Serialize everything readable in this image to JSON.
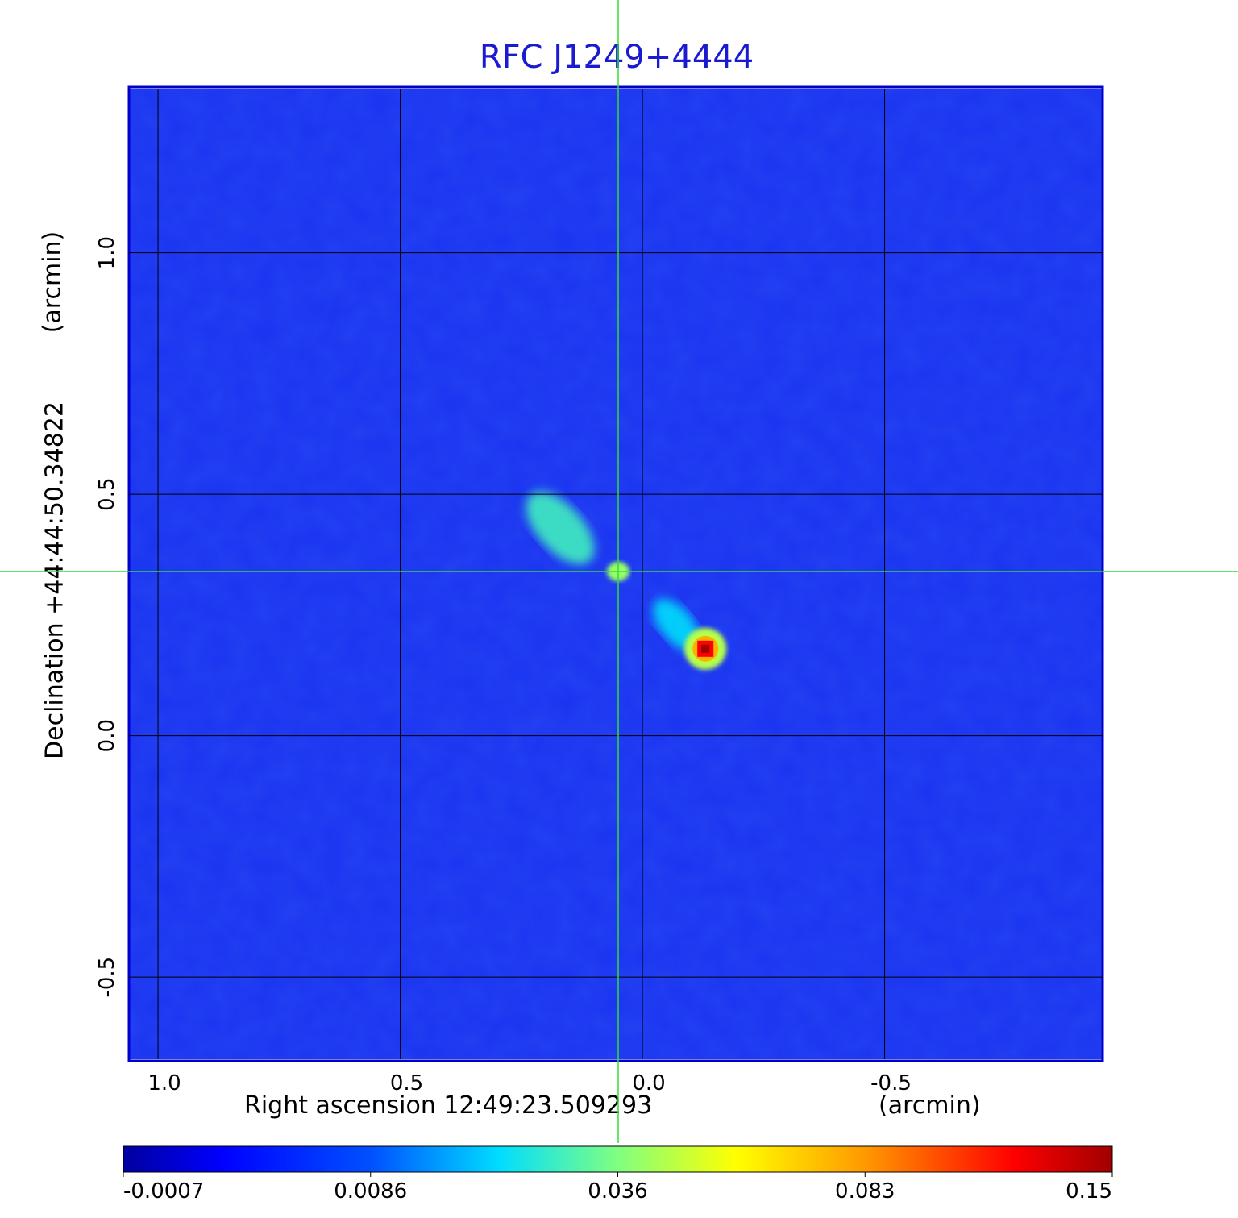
{
  "chart_data": {
    "type": "heatmap",
    "title": "RFC J1249+4444",
    "xlabel": "Right ascension  12:49:23.509293",
    "xunit": "(arcmin)",
    "ylabel": "Declination  +44:44:50.34822",
    "yunit": "(arcmin)",
    "xlim": [
      1.06,
      -0.95
    ],
    "ylim": [
      -0.67,
      1.34
    ],
    "x_ticks": [
      1.0,
      0.5,
      0.0,
      -0.5
    ],
    "x_tick_labels": [
      "1.0",
      "0.5",
      "0.0",
      "-0.5"
    ],
    "y_ticks": [
      1.0,
      0.5,
      0.0,
      -0.5
    ],
    "y_tick_labels": [
      "1.0",
      "0.5",
      "0.0",
      "-0.5"
    ],
    "grid": true,
    "crosshair": {
      "x": 0.05,
      "y": 0.34
    },
    "colorbar": {
      "ticks": [
        -0.0007,
        0.0086,
        0.036,
        0.083,
        0.15
      ],
      "tick_labels": [
        "-0.0007",
        "0.0086",
        "0.036",
        "0.083",
        "0.15"
      ],
      "colormap": "jet",
      "position": "bottom"
    },
    "sources": [
      {
        "x": 0.17,
        "y": 0.43,
        "peak": 0.03
      },
      {
        "x": 0.05,
        "y": 0.34,
        "peak": 0.035
      },
      {
        "x": -0.07,
        "y": 0.23,
        "peak": 0.025
      },
      {
        "x": -0.13,
        "y": 0.18,
        "peak": 0.15
      }
    ],
    "colors": {
      "title": "#1a1ad0",
      "frame": "#0000cc",
      "background": "#1a33f0",
      "crosshair": "#33dd33"
    }
  }
}
